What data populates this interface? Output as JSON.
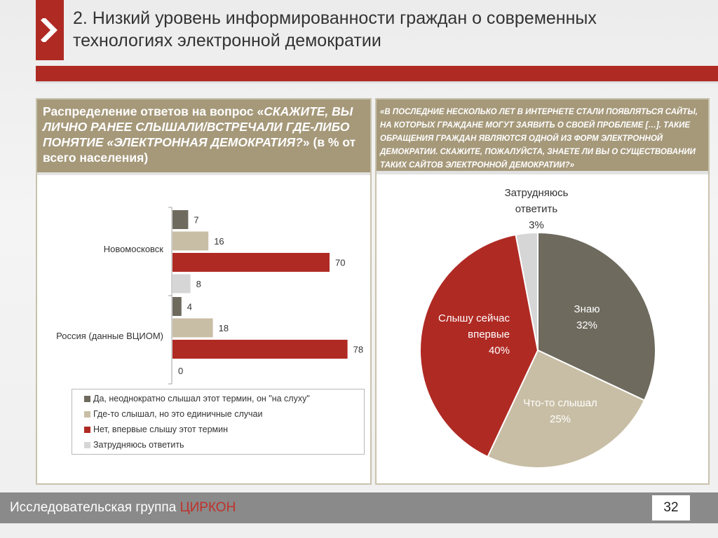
{
  "slide": {
    "title": "2. Низкий уровень информированности граждан о современных технологиях электронной демократии",
    "footer_prefix": "Исследовательская группа ",
    "footer_brand": "ЦИРКОН",
    "page_number": "32",
    "accent_color": "#b02a24"
  },
  "left_panel": {
    "header_plain": "Распределение ответов на вопрос «",
    "header_italic": "СКАЖИТЕ, ВЫ ЛИЧНО РАНЕЕ СЛЫШАЛИ/ВСТРЕЧАЛИ ГДЕ-ЛИБО ПОНЯТИЕ «ЭЛЕКТРОННАЯ ДЕМОКРАТИЯ?",
    "header_tail": "» (в % от всего населения)"
  },
  "right_panel": {
    "header": "«В ПОСЛЕДНИЕ НЕСКОЛЬКО ЛЕТ В ИНТЕРНЕТЕ СТАЛИ ПОЯВЛЯТЬСЯ САЙТЫ, НА КОТОРЫХ ГРАЖДАНЕ МОГУТ ЗАЯВИТЬ О СВОЕЙ ПРОБЛЕМЕ […]. ТАКИЕ ОБРАЩЕНИЯ ГРАЖДАН ЯВЛЯЮТСЯ ОДНОЙ ИЗ ФОРМ ЭЛЕКТРОННОЙ ДЕМОКРАТИИ. СКАЖИТЕ, ПОЖАЛУЙСТА, ЗНАЕТЕ ЛИ ВЫ О СУЩЕСТВОВАНИИ ТАКИХ САЙТОВ ЭЛЕКТРОННОЙ ДЕМОКРАТИИ?»"
  },
  "chart_data": [
    {
      "type": "bar",
      "orientation": "horizontal",
      "categories": [
        "Новомосковск",
        "Россия (данные ВЦИОМ)"
      ],
      "series": [
        {
          "name": "Да, неоднократно слышал этот термин, он \"на слуху\"",
          "color": "#6e6a5e",
          "values": [
            7,
            4
          ]
        },
        {
          "name": "Где-то слышал, но это единичные случаи",
          "color": "#c8bea5",
          "values": [
            16,
            18
          ]
        },
        {
          "name": "Нет, впервые слышу этот термин",
          "color": "#b02a24",
          "values": [
            70,
            78
          ]
        },
        {
          "name": "Затрудняюсь ответить",
          "color": "#d6d6d6",
          "values": [
            8,
            0
          ]
        }
      ],
      "value_labels": [
        [
          "7",
          "16",
          "70",
          "8"
        ],
        [
          "4",
          "18",
          "78",
          "0"
        ]
      ],
      "xlim": [
        0,
        80
      ],
      "legend_position": "bottom"
    },
    {
      "type": "pie",
      "slices": [
        {
          "label": "Знаю",
          "pct_label": "32%",
          "value": 32,
          "color": "#6e6a5e"
        },
        {
          "label": "Что-то слышал",
          "pct_label": "25%",
          "value": 25,
          "color": "#c8bea5"
        },
        {
          "label": "Слышу сейчас впервые",
          "pct_label": "40%",
          "value": 40,
          "color": "#b02a24"
        },
        {
          "label": "Затрудняюсь ответить",
          "pct_label": "3%",
          "value": 3,
          "color": "#d6d6d6"
        }
      ],
      "label_lines": {
        "slice0": [
          "Знаю",
          "32%"
        ],
        "slice1": [
          "Что-то слышал",
          "25%"
        ],
        "slice2": [
          "Слышу сейчас",
          "впервые",
          "40%"
        ],
        "slice3": [
          "Затрудняюсь",
          "ответить",
          "3%"
        ]
      }
    }
  ]
}
